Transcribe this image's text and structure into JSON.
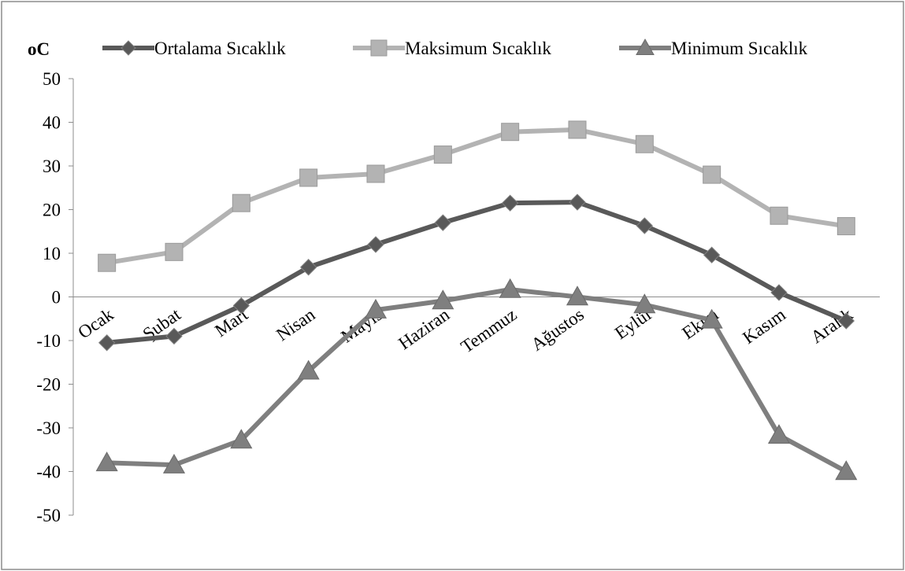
{
  "chart_data": {
    "type": "line",
    "unit_label": "oC",
    "categories": [
      "Ocak",
      "Şubat",
      "Mart",
      "Nisan",
      "Mayıs",
      "Haziran",
      "Temmuz",
      "Ağustos",
      "Eylül",
      "Ekim",
      "Kasım",
      "Aralık"
    ],
    "ylim": [
      -50,
      50
    ],
    "yticks": [
      "50",
      "40",
      "30",
      "20",
      "10",
      "0",
      "-10",
      "-20",
      "-30",
      "-40",
      "-50"
    ],
    "grid": false,
    "legend_position": "top",
    "series": [
      {
        "name": "Ortalama Sıcaklık",
        "marker": "diamond",
        "color": "#595959",
        "values": [
          -10.5,
          -9,
          -2,
          6.8,
          12,
          17,
          21.5,
          21.7,
          16.3,
          9.6,
          1,
          -5.5
        ]
      },
      {
        "name": "Maksimum Sıcaklık",
        "marker": "square",
        "color": "#b3b3b3",
        "values": [
          7.8,
          10.3,
          21.5,
          27.3,
          28.2,
          32.6,
          37.8,
          38.3,
          35,
          28,
          18.6,
          16.2
        ]
      },
      {
        "name": "Minimum Sıcaklık",
        "marker": "triangle",
        "color": "#7f7f7f",
        "values": [
          -38,
          -38.5,
          -32.8,
          -17,
          -3,
          -0.9,
          1.7,
          0,
          -1.8,
          -5.3,
          -31.7,
          -40
        ]
      }
    ]
  }
}
